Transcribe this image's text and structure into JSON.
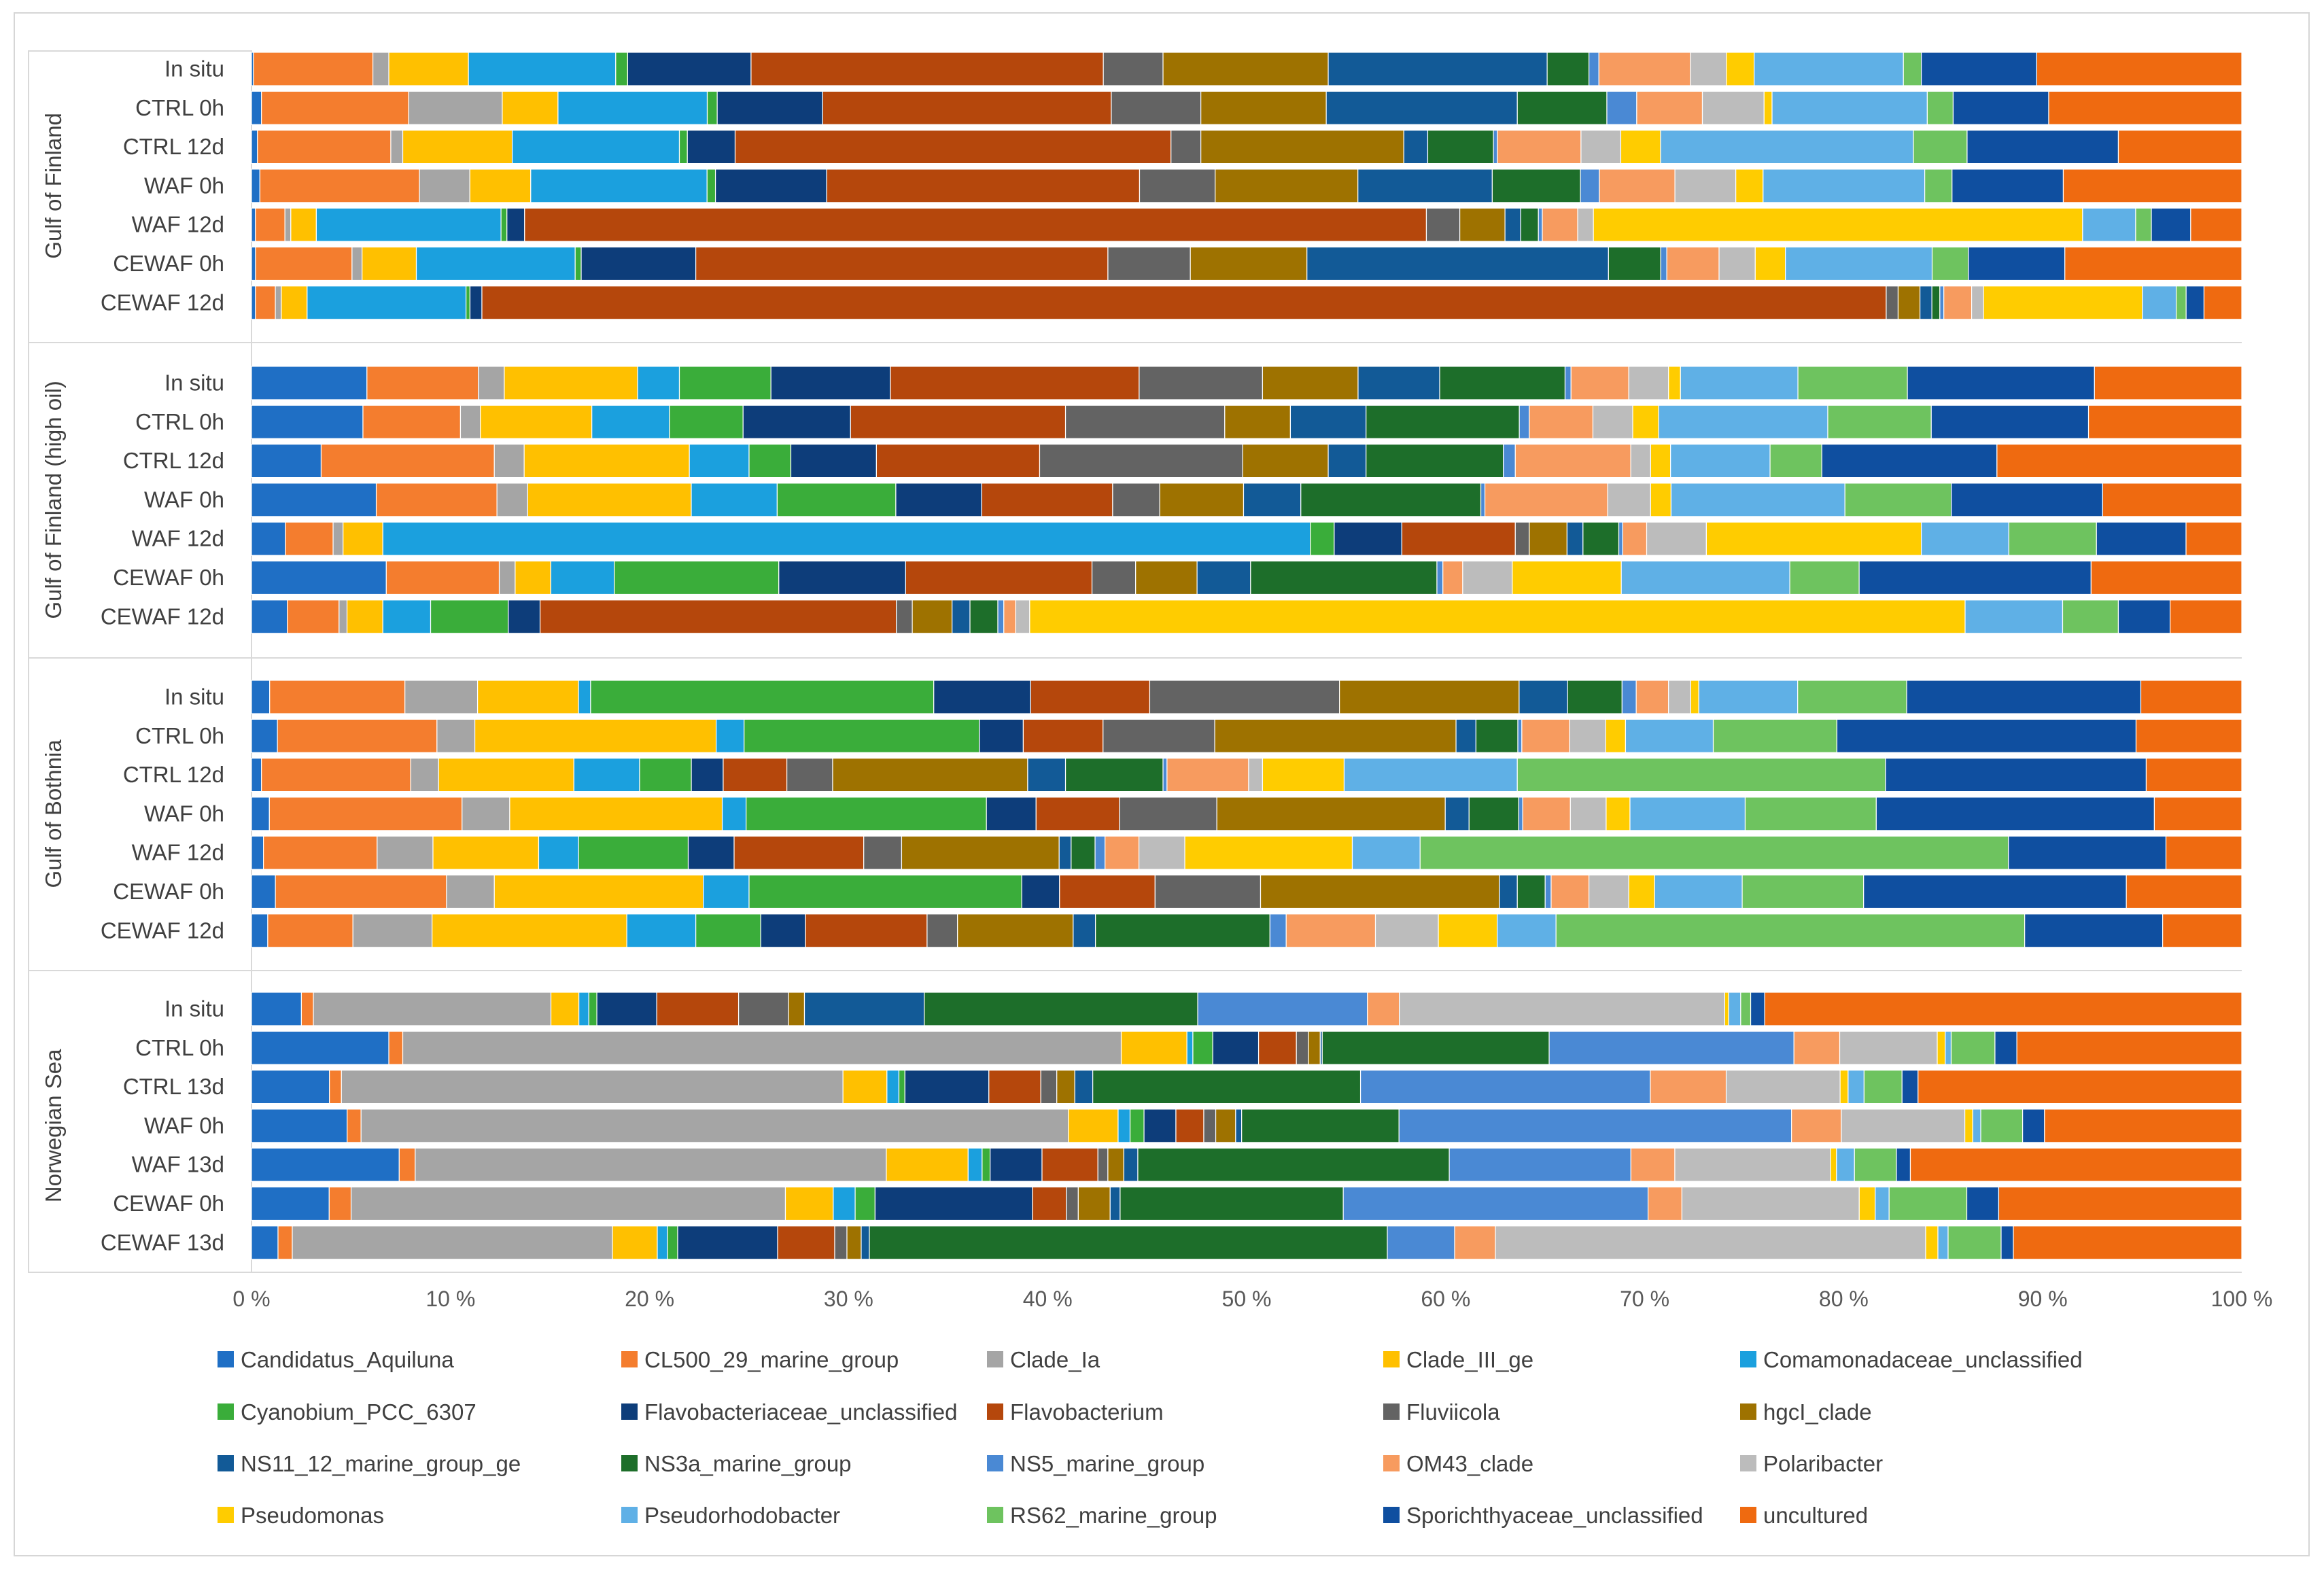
{
  "chart_data": {
    "type": "bar",
    "orientation": "horizontal",
    "stacked": true,
    "normalized": true,
    "title": "",
    "xlabel": "",
    "ylabel": "",
    "xlim": [
      0,
      100
    ],
    "x_ticks": [
      "0 %",
      "10 %",
      "20 %",
      "30 %",
      "40 %",
      "50 %",
      "60 %",
      "70 %",
      "80 %",
      "90 %",
      "100 %"
    ],
    "legend_position": "bottom",
    "series": [
      {
        "name": "Candidatus_Aquiluna",
        "color": "#1f6fc5"
      },
      {
        "name": "CL500_29_marine_group",
        "color": "#f47d2e"
      },
      {
        "name": "Clade_Ia",
        "color": "#a5a5a5"
      },
      {
        "name": "Clade_III_ge",
        "color": "#ffc000"
      },
      {
        "name": "Comamonadaceae_unclassified",
        "color": "#1ba0de"
      },
      {
        "name": "Cyanobium_PCC_6307",
        "color": "#3aad3a"
      },
      {
        "name": "Flavobacteriaceae_unclassified",
        "color": "#0d3d7a"
      },
      {
        "name": "Flavobacterium",
        "color": "#b5470c"
      },
      {
        "name": "Fluviicola",
        "color": "#636363"
      },
      {
        "name": "hgcI_clade",
        "color": "#9e7200"
      },
      {
        "name": "NS11_12_marine_group_ge",
        "color": "#125a97"
      },
      {
        "name": "NS3a_marine_group",
        "color": "#1d6e2a"
      },
      {
        "name": "NS5_marine_group",
        "color": "#4a89d4"
      },
      {
        "name": "OM43_clade",
        "color": "#f79b5f"
      },
      {
        "name": "Polaribacter",
        "color": "#bcbcbc"
      },
      {
        "name": "Pseudomonas",
        "color": "#ffcc00"
      },
      {
        "name": "Pseudorhodobacter",
        "color": "#5fb0e6"
      },
      {
        "name": "RS62_marine_group",
        "color": "#6ec35f"
      },
      {
        "name": "Sporichthyaceae_unclassified",
        "color": "#0f4fa0"
      },
      {
        "name": "uncultured",
        "color": "#ef6a10"
      }
    ],
    "groups": [
      {
        "name": "Gulf of Finland",
        "bars": [
          {
            "label": "In situ",
            "values": [
              0.1,
              6.0,
              0.8,
              4.0,
              7.4,
              0.6,
              6.2,
              17.7,
              3.0,
              8.3,
              11.0,
              2.1,
              0.5,
              4.6,
              1.8,
              1.4,
              7.5,
              0.9,
              5.8,
              10.3
            ]
          },
          {
            "label": "CTRL 0h",
            "values": [
              0.5,
              7.4,
              4.7,
              2.8,
              7.5,
              0.5,
              5.3,
              14.5,
              4.5,
              6.3,
              9.6,
              4.5,
              1.5,
              3.3,
              3.1,
              0.4,
              7.8,
              1.3,
              4.8,
              9.7
            ]
          },
          {
            "label": "CTRL 12d",
            "values": [
              0.3,
              6.7,
              0.6,
              5.5,
              8.4,
              0.4,
              2.4,
              21.9,
              1.5,
              10.2,
              1.2,
              3.3,
              0.2,
              4.2,
              2.0,
              2.0,
              12.7,
              2.7,
              7.6,
              6.2
            ]
          },
          {
            "label": "WAF 0h",
            "values": [
              0.4,
              7.6,
              2.4,
              2.9,
              8.4,
              0.4,
              5.3,
              14.9,
              3.6,
              6.8,
              6.4,
              4.2,
              0.9,
              3.6,
              2.9,
              1.3,
              7.7,
              1.3,
              5.3,
              8.5
            ]
          },
          {
            "label": "WAF 12d",
            "values": [
              0.2,
              1.5,
              0.3,
              1.3,
              9.4,
              0.3,
              0.9,
              45.9,
              1.7,
              2.3,
              0.8,
              0.9,
              0.2,
              1.8,
              0.8,
              24.9,
              2.7,
              0.8,
              2.0,
              2.6
            ]
          },
          {
            "label": "CEWAF 0h",
            "values": [
              0.2,
              4.8,
              0.5,
              2.7,
              7.9,
              0.3,
              5.7,
              20.5,
              4.1,
              5.8,
              15.0,
              2.6,
              0.3,
              2.6,
              1.8,
              1.5,
              7.3,
              1.8,
              4.8,
              8.8
            ]
          },
          {
            "label": "CEWAF 12d",
            "values": [
              0.2,
              1.0,
              0.3,
              1.3,
              8.0,
              0.2,
              0.6,
              70.7,
              0.6,
              1.1,
              0.6,
              0.4,
              0.2,
              1.4,
              0.6,
              8.0,
              1.7,
              0.5,
              0.9,
              1.9
            ]
          }
        ]
      },
      {
        "name": "Gulf of Finland (high oil)",
        "bars": [
          {
            "label": "In situ",
            "values": [
              5.8,
              5.6,
              1.3,
              6.7,
              2.1,
              4.6,
              6.0,
              12.5,
              6.2,
              4.8,
              4.1,
              6.3,
              0.3,
              2.9,
              2.0,
              0.6,
              5.9,
              5.5,
              9.4,
              7.4
            ]
          },
          {
            "label": "CTRL 0h",
            "values": [
              5.6,
              4.9,
              1.0,
              5.6,
              3.9,
              3.7,
              5.4,
              10.8,
              8.0,
              3.3,
              3.8,
              7.7,
              0.5,
              3.2,
              2.0,
              1.3,
              8.5,
              5.2,
              7.9,
              7.7
            ]
          },
          {
            "label": "CTRL 12d",
            "values": [
              3.5,
              8.7,
              1.5,
              8.3,
              3.0,
              2.1,
              4.3,
              8.2,
              10.2,
              4.3,
              1.9,
              6.9,
              0.6,
              5.8,
              1.0,
              1.0,
              5.0,
              2.6,
              8.8,
              12.3
            ]
          },
          {
            "label": "WAF 0h",
            "values": [
              6.1,
              5.9,
              1.5,
              8.0,
              4.2,
              5.8,
              4.2,
              6.4,
              2.3,
              4.1,
              2.8,
              8.8,
              0.2,
              6.0,
              2.1,
              1.0,
              8.5,
              5.2,
              7.4,
              6.8
            ]
          },
          {
            "label": "WAF 12d",
            "values": [
              1.7,
              2.4,
              0.5,
              2.0,
              46.6,
              1.2,
              3.4,
              5.7,
              0.7,
              1.9,
              0.8,
              1.8,
              0.2,
              1.2,
              3.0,
              10.8,
              4.4,
              4.4,
              4.5,
              2.8
            ]
          },
          {
            "label": "CEWAF 0h",
            "values": [
              6.8,
              5.7,
              0.8,
              1.8,
              3.2,
              8.3,
              6.4,
              9.4,
              2.2,
              3.1,
              2.7,
              9.4,
              0.3,
              1.0,
              2.5,
              5.5,
              8.5,
              3.5,
              11.7,
              7.6
            ]
          },
          {
            "label": "CEWAF 12d",
            "values": [
              1.8,
              2.6,
              0.4,
              1.8,
              2.4,
              3.9,
              1.6,
              17.9,
              0.8,
              2.0,
              0.9,
              1.4,
              0.3,
              0.6,
              0.7,
              47.0,
              4.9,
              2.8,
              2.6,
              3.6
            ]
          }
        ]
      },
      {
        "name": "Gulf of Bothnia",
        "bars": [
          {
            "label": "In situ",
            "values": [
              0.9,
              6.7,
              3.6,
              5.0,
              0.6,
              17.0,
              4.8,
              5.9,
              9.4,
              8.9,
              2.4,
              2.7,
              0.7,
              1.6,
              1.1,
              0.4,
              4.9,
              5.4,
              11.6,
              5.0
            ]
          },
          {
            "label": "CTRL 0h",
            "values": [
              1.3,
              8.0,
              1.9,
              12.1,
              1.4,
              11.8,
              2.2,
              4.0,
              5.6,
              12.1,
              1.0,
              2.1,
              0.2,
              2.4,
              1.8,
              1.0,
              4.4,
              6.2,
              15.0,
              5.3
            ]
          },
          {
            "label": "CTRL 12d",
            "values": [
              0.5,
              7.5,
              1.4,
              6.8,
              3.3,
              2.6,
              1.6,
              3.2,
              2.3,
              9.8,
              1.9,
              4.9,
              0.2,
              4.1,
              0.7,
              4.1,
              8.7,
              18.5,
              13.1,
              4.8
            ]
          },
          {
            "label": "WAF 0h",
            "values": [
              0.9,
              9.7,
              2.4,
              10.7,
              1.2,
              12.1,
              2.5,
              4.2,
              4.9,
              11.5,
              1.2,
              2.5,
              0.2,
              2.4,
              1.8,
              1.2,
              5.8,
              6.6,
              14.0,
              4.4
            ]
          },
          {
            "label": "WAF 12d",
            "values": [
              0.6,
              5.7,
              2.8,
              5.3,
              2.0,
              5.5,
              2.3,
              6.5,
              1.9,
              7.9,
              0.6,
              1.2,
              0.5,
              1.7,
              2.3,
              8.4,
              3.4,
              29.5,
              7.9,
              3.8
            ]
          },
          {
            "label": "CEWAF 0h",
            "values": [
              1.2,
              8.6,
              2.4,
              10.5,
              2.3,
              13.7,
              1.9,
              4.8,
              5.3,
              12.0,
              0.9,
              1.4,
              0.3,
              1.9,
              2.0,
              1.3,
              4.4,
              6.1,
              13.2,
              5.8
            ]
          },
          {
            "label": "CEWAF 12d",
            "values": [
              0.8,
              4.2,
              3.9,
              9.6,
              3.4,
              3.2,
              2.2,
              6.0,
              1.5,
              5.7,
              1.1,
              8.6,
              0.8,
              4.4,
              3.1,
              2.9,
              2.9,
              23.1,
              6.8,
              3.9
            ]
          }
        ]
      },
      {
        "name": "Norwegian Sea",
        "bars": [
          {
            "label": "In situ",
            "values": [
              2.5,
              0.6,
              11.9,
              1.4,
              0.5,
              0.4,
              3.0,
              4.1,
              2.5,
              0.8,
              6.0,
              13.7,
              8.5,
              1.6,
              16.3,
              0.2,
              0.6,
              0.5,
              0.7,
              23.9
            ]
          },
          {
            "label": "CTRL 0h",
            "values": [
              6.9,
              0.7,
              36.1,
              3.3,
              0.3,
              1.0,
              2.3,
              1.9,
              0.6,
              0.6,
              0.1,
              11.4,
              12.3,
              2.3,
              4.9,
              0.4,
              0.3,
              2.2,
              1.1,
              11.3
            ]
          },
          {
            "label": "CTRL 13d",
            "values": [
              3.9,
              0.6,
              25.1,
              2.2,
              0.6,
              0.3,
              4.2,
              2.6,
              0.8,
              0.9,
              0.9,
              13.4,
              14.5,
              3.8,
              5.7,
              0.4,
              0.8,
              1.9,
              0.8,
              16.2
            ]
          },
          {
            "label": "WAF 0h",
            "values": [
              4.8,
              0.7,
              35.5,
              2.5,
              0.6,
              0.7,
              1.6,
              1.4,
              0.6,
              1.0,
              0.3,
              7.9,
              19.7,
              2.5,
              6.2,
              0.4,
              0.4,
              2.1,
              1.1,
              9.9
            ]
          },
          {
            "label": "WAF 13d",
            "values": [
              7.4,
              0.8,
              23.6,
              4.1,
              0.7,
              0.4,
              2.6,
              2.8,
              0.5,
              0.8,
              0.7,
              15.6,
              9.1,
              2.2,
              7.8,
              0.3,
              0.9,
              2.1,
              0.7,
              16.6
            ]
          },
          {
            "label": "CEWAF 0h",
            "values": [
              3.9,
              1.1,
              21.8,
              2.4,
              1.1,
              1.0,
              7.9,
              1.7,
              0.6,
              1.6,
              0.5,
              11.2,
              15.3,
              1.7,
              8.9,
              0.8,
              0.7,
              3.9,
              1.6,
              12.2
            ]
          },
          {
            "label": "CEWAF 13d",
            "values": [
              1.3,
              0.7,
              15.7,
              2.2,
              0.5,
              0.5,
              4.9,
              2.8,
              0.6,
              0.7,
              0.4,
              25.4,
              3.3,
              2.0,
              21.1,
              0.6,
              0.5,
              2.6,
              0.6,
              11.2
            ]
          }
        ]
      }
    ]
  }
}
